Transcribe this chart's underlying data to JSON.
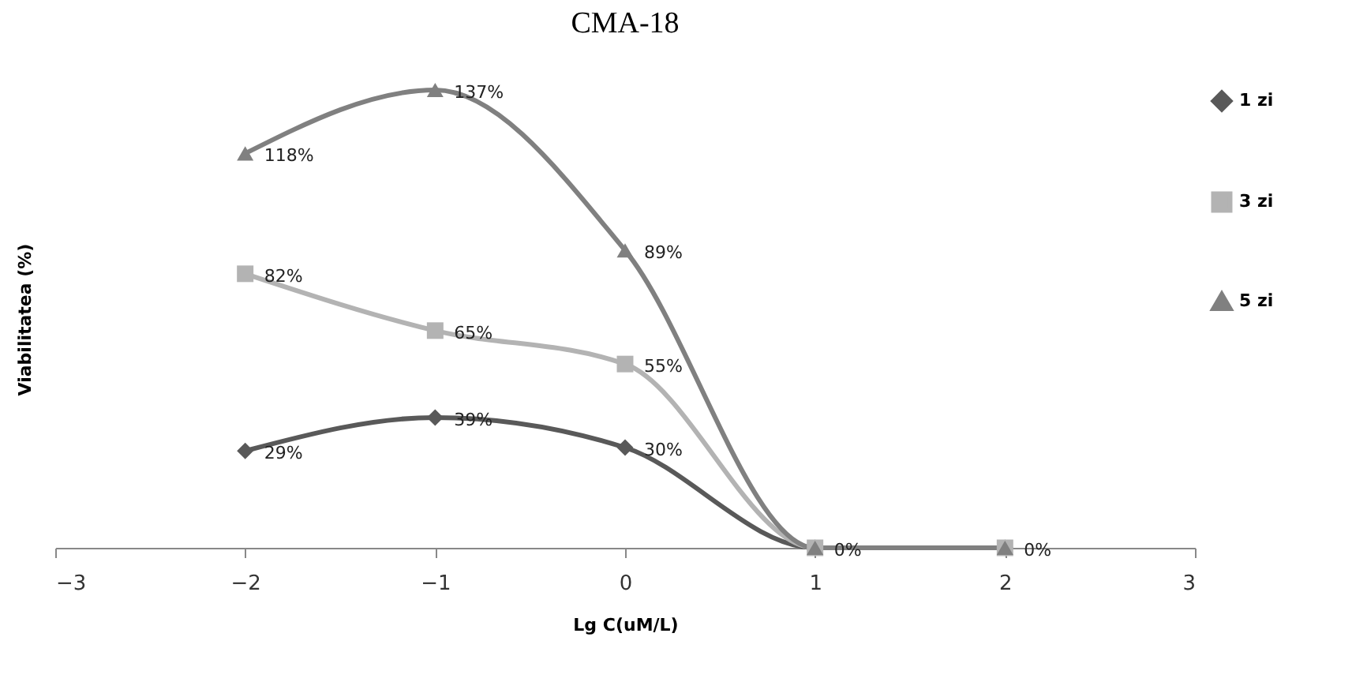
{
  "chart_data": {
    "type": "line",
    "title": "CMA-18",
    "xlabel": "Lg C(uM/L)",
    "ylabel": "Viabilitatea (%)",
    "x": [
      -2,
      -1,
      0,
      1,
      2
    ],
    "xlim": [
      -3,
      3
    ],
    "xticks": [
      -3,
      -2,
      -1,
      0,
      1,
      2,
      3
    ],
    "tick_labels": "x",
    "legend": "right",
    "grid": false,
    "series": [
      {
        "name": "1 zi",
        "color": "#595959",
        "marker": "diamond",
        "values": [
          29,
          39,
          30,
          0,
          0
        ],
        "value_labels": [
          "29%",
          "39%",
          "30%",
          null,
          null
        ]
      },
      {
        "name": "3 zi",
        "color": "#b3b3b3",
        "marker": "square",
        "values": [
          82,
          65,
          55,
          0,
          0
        ],
        "value_labels": [
          "82%",
          "65%",
          "55%",
          null,
          null
        ]
      },
      {
        "name": "5 zi",
        "color": "#808080",
        "marker": "triangle",
        "values": [
          118,
          137,
          89,
          0,
          0
        ],
        "value_labels": [
          "118%",
          "137%",
          "89%",
          "0%",
          "0%"
        ]
      }
    ]
  }
}
